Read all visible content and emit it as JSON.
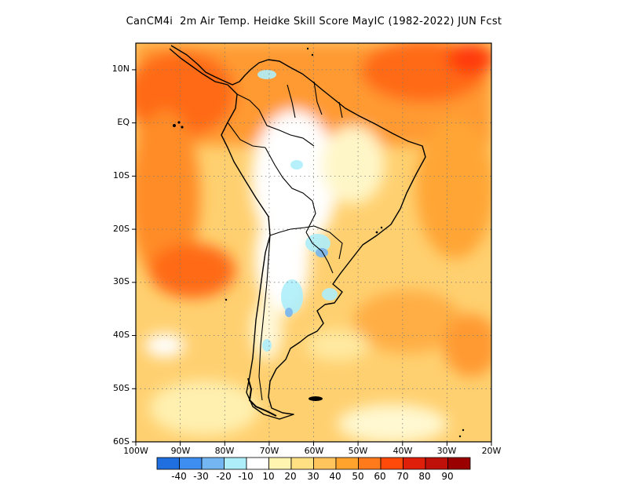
{
  "title": "CanCM4i  2m Air Temp. Heidke Skill Score MayIC (1982-2022) JUN Fcst",
  "map": {
    "lat_labels": [
      "10N",
      "EQ",
      "10S",
      "20S",
      "30S",
      "40S",
      "50S",
      "60S"
    ],
    "lon_labels": [
      "100W",
      "90W",
      "80W",
      "70W",
      "60W",
      "50W",
      "40W",
      "30W",
      "20W"
    ],
    "extent": {
      "west": -100,
      "east": -20,
      "south": -60,
      "north": 15
    },
    "gridlines": "dotted"
  },
  "colorbar": {
    "levels": [
      "-40",
      "-30",
      "-20",
      "-10",
      "10",
      "20",
      "30",
      "40",
      "50",
      "60",
      "70",
      "80",
      "90"
    ],
    "colors": [
      "#1f6fe0",
      "#3d8ef0",
      "#74b6f2",
      "#aeeefa",
      "#ffffff",
      "#fff4b0",
      "#ffe082",
      "#ffc45c",
      "#ffa32d",
      "#ff7a1a",
      "#ff4a0a",
      "#e01f0a",
      "#c0100a",
      "#9a0000"
    ]
  }
}
